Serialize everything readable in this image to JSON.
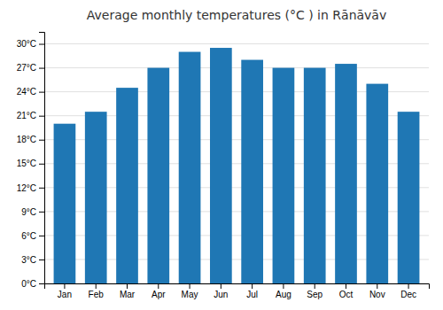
{
  "chart_data": {
    "type": "bar",
    "title": "Average monthly temperatures (°C ) in Rānāvāv",
    "categories": [
      "Jan",
      "Feb",
      "Mar",
      "Apr",
      "May",
      "Jun",
      "Jul",
      "Aug",
      "Sep",
      "Oct",
      "Nov",
      "Dec"
    ],
    "values": [
      20,
      21.5,
      24.5,
      27,
      29,
      29.5,
      28,
      27,
      27,
      27.5,
      25,
      21.5
    ],
    "ylim": [
      0,
      31.5
    ],
    "yticks": [
      {
        "value": 0,
        "label": "0°C"
      },
      {
        "value": 3,
        "label": "3°C"
      },
      {
        "value": 6,
        "label": "6°C"
      },
      {
        "value": 9,
        "label": "9°C"
      },
      {
        "value": 12,
        "label": "12°C"
      },
      {
        "value": 15,
        "label": "15°C"
      },
      {
        "value": 18,
        "label": "18°C"
      },
      {
        "value": 21,
        "label": "21°C"
      },
      {
        "value": 24,
        "label": "24°C"
      },
      {
        "value": 27,
        "label": "27°C"
      },
      {
        "value": 30,
        "label": "30°C"
      }
    ],
    "grid": true
  }
}
